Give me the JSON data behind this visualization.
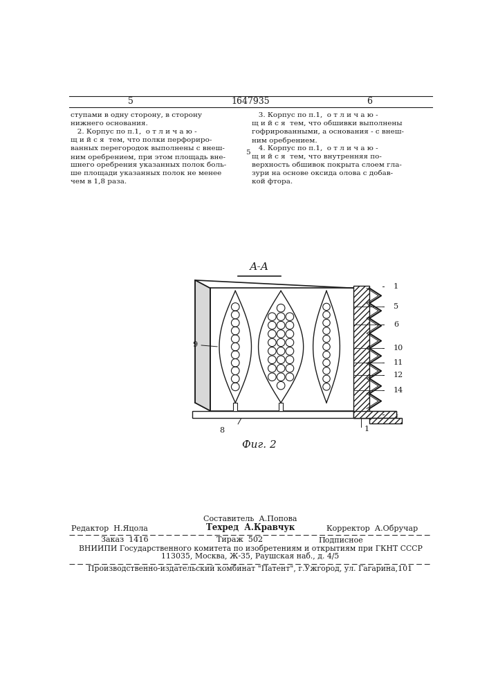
{
  "page_number_left": "5",
  "page_number_center": "1647935",
  "page_number_right": "6",
  "text_left": [
    "ступами в одну сторону, в сторону",
    "нижнего основания.",
    "   2. Корпус по п.1,  о т л и ч а ю -",
    "щ и й с я  тем, что полки перфориро-",
    "ванных перегородок выполнены с внеш-",
    "ним оребрением, при этом площадь вне-",
    "шнего оребрения указанных полок боль-",
    "ше площади указанных полок не менее",
    "чем в 1,8 раза."
  ],
  "text_right": [
    "   3. Корпус по п.1,  о т л и ч а ю -",
    "щ и й с я  тем, что обшивки выполнены",
    "гофрированными, а основания - с внеш-",
    "ним оребрением.",
    "   4. Корпус по п.1,  о т л и ч а ю -",
    "щ и й с я  тем, что внутренняя по-",
    "верхность обшивок покрыта слоем гла-",
    "зури на основе оксида олова с добав-",
    "кой фтора."
  ],
  "section_label": "А-А",
  "fig_label": "Фиг. 2",
  "footer_line1": "Составитель  А.Попова",
  "footer_col1_label": "Редактор  Н.Яцола",
  "footer_col2_label": "Техред  А.Кравчук",
  "footer_col3_label": "Корректор  А.Обручар",
  "footer_order": "Заказ  1416",
  "footer_edition": "Тираж  502",
  "footer_type": "Подписное",
  "footer_vniip1": "ВНИИПИ Государственного комитета по изобретениям и открытиям при ГКНТ СССР",
  "footer_vniip2": "113035, Москва, Ж-35, Раушская наб., д. 4/5",
  "footer_production": "Производственно-издательский комбинат \"Патент\", г.Ужгород, ул. Гагарина,101",
  "bg_color": "#ffffff",
  "line_color": "#1a1a1a"
}
